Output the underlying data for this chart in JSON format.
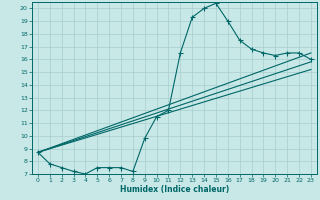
{
  "xlabel": "Humidex (Indice chaleur)",
  "xlim": [
    -0.5,
    23.5
  ],
  "ylim": [
    7,
    20.5
  ],
  "yticks": [
    7,
    8,
    9,
    10,
    11,
    12,
    13,
    14,
    15,
    16,
    17,
    18,
    19,
    20
  ],
  "xticks": [
    0,
    1,
    2,
    3,
    4,
    5,
    6,
    7,
    8,
    9,
    10,
    11,
    12,
    13,
    14,
    15,
    16,
    17,
    18,
    19,
    20,
    21,
    22,
    23
  ],
  "bg_color": "#c8e8e8",
  "line_color": "#006666",
  "grid_color": "#a8cece",
  "main_curve_x": [
    0,
    1,
    2,
    3,
    4,
    5,
    6,
    7,
    8,
    9,
    10,
    11,
    12,
    13,
    14,
    15,
    16,
    17,
    18,
    19,
    20,
    21,
    22,
    23
  ],
  "main_curve_y": [
    8.7,
    7.8,
    7.5,
    7.2,
    7.0,
    7.5,
    7.5,
    7.5,
    7.2,
    9.8,
    11.5,
    12.0,
    16.5,
    19.3,
    20.0,
    20.4,
    19.0,
    17.5,
    16.8,
    16.5,
    16.3,
    16.5,
    16.5,
    16.0
  ],
  "line1_x": [
    0,
    23
  ],
  "line1_y": [
    8.7,
    16.5
  ],
  "line2_x": [
    0,
    23
  ],
  "line2_y": [
    8.7,
    15.8
  ],
  "line3_x": [
    0,
    23
  ],
  "line3_y": [
    8.7,
    15.2
  ]
}
